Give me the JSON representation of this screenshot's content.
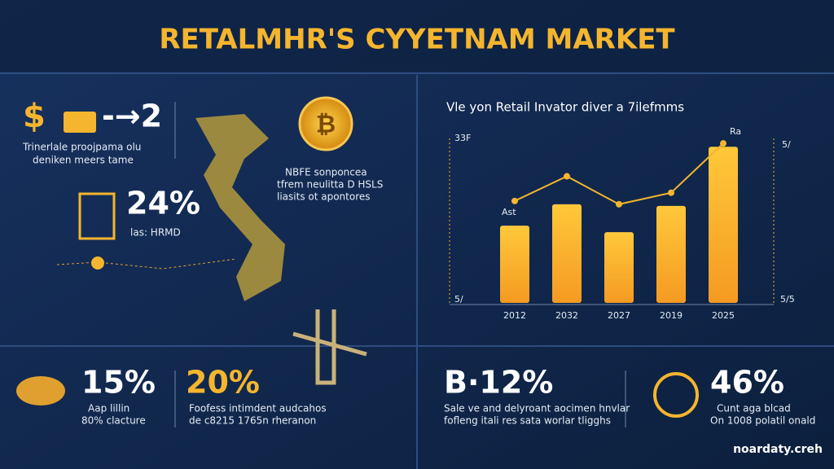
{
  "header": {
    "title": "RETALMHR'S CYYETNAM MARKET"
  },
  "stats": [
    {
      "prefix": "$",
      "value": "-→2",
      "lines": [
        "Trinerlale proojpama olu",
        "deniken meers tame"
      ]
    },
    {
      "value": "24%",
      "lines": [
        "las: HRMD"
      ]
    },
    {
      "lines": [
        "NBFE sonponcea",
        "tfrem neulitta D HSLS",
        "liasits ot apontores"
      ]
    },
    {
      "value": "15%",
      "lines": [
        "Aap lillin",
        "80% clacture"
      ]
    },
    {
      "value": "20%",
      "lines": [
        "Foofess intimdent audcahos",
        "de c8215 1765n rheranon"
      ]
    },
    {
      "value": "B·12%",
      "lines": [
        "Sale ve and delyroant aocimen hnvlar",
        "fofleng itali res sata worlar tligghs"
      ]
    },
    {
      "value": "46%",
      "lines": [
        "Cunt aga blcad",
        "On 1008 polatil onald"
      ]
    }
  ],
  "footer": {
    "brand": "noardaty.creh"
  },
  "chart_data": {
    "type": "bar-line",
    "title": "Vle yon Retail Invator diver a 7ilefmms",
    "categories": [
      "2012",
      "2032",
      "2027",
      "2019",
      "2025"
    ],
    "series": [
      {
        "type": "bar",
        "color": "#f7b230",
        "values": [
          47,
          60,
          43,
          59,
          95
        ]
      },
      {
        "type": "line",
        "color": "#f5b52e",
        "values": [
          62,
          77,
          60,
          67,
          97
        ]
      }
    ],
    "annotations": [
      "Ast",
      "Ra"
    ],
    "axis_texts": {
      "left_top": "33F",
      "left_bottom": "5/",
      "right_top": "5/",
      "right_bottom": "5/5"
    },
    "ylim": [
      0,
      105
    ]
  }
}
